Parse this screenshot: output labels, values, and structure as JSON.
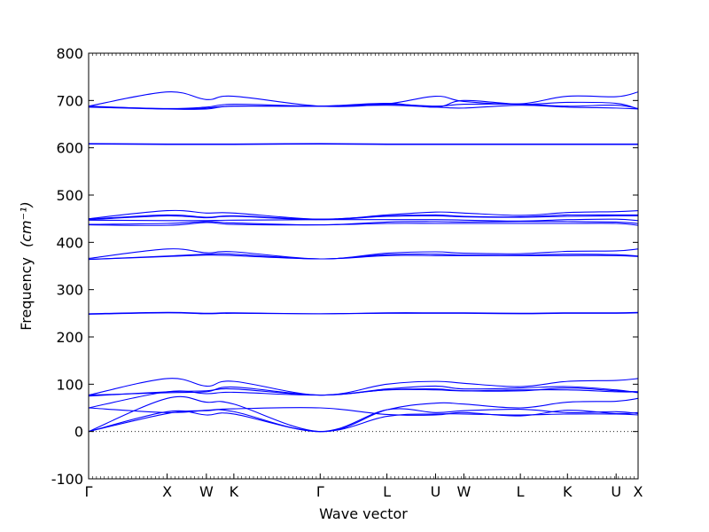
{
  "chart_data": {
    "type": "line",
    "title": "",
    "xlabel": "Wave vector",
    "ylabel": "Frequency",
    "ylabel_unit": "(cm⁻¹)",
    "ylim": [
      -100,
      800
    ],
    "yticks": [
      -100,
      0,
      100,
      200,
      300,
      400,
      500,
      600,
      700,
      800
    ],
    "xticks": [
      {
        "label": "Γ",
        "pos": 0
      },
      {
        "label": "X",
        "pos": 1
      },
      {
        "label": "W",
        "pos": 1.5
      },
      {
        "label": "K",
        "pos": 1.85
      },
      {
        "label": "Γ",
        "pos": 2.95
      },
      {
        "label": "L",
        "pos": 3.8
      },
      {
        "label": "U",
        "pos": 4.42
      },
      {
        "label": "W",
        "pos": 4.78
      },
      {
        "label": "L",
        "pos": 5.5
      },
      {
        "label": "K",
        "pos": 6.1
      },
      {
        "label": "U",
        "pos": 6.72
      },
      {
        "label": "X",
        "pos": 7
      }
    ],
    "xlim": [
      0,
      7
    ],
    "zero_line": true,
    "series_color": "#0000ff",
    "series": [
      {
        "values": [
          0,
          42,
          35,
          37,
          0,
          32,
          37,
          37,
          35,
          37,
          37,
          35
        ]
      },
      {
        "values": [
          0,
          38,
          44,
          42,
          0,
          46,
          40,
          44,
          47,
          40,
          42,
          38
        ]
      },
      {
        "values": [
          0,
          70,
          62,
          58,
          0,
          46,
          60,
          58,
          50,
          62,
          64,
          70
        ]
      },
      {
        "values": [
          50,
          84,
          80,
          83,
          77,
          88,
          90,
          86,
          86,
          92,
          86,
          84
        ]
      },
      {
        "values": [
          50,
          40,
          45,
          48,
          50,
          36,
          35,
          40,
          33,
          45,
          38,
          40
        ]
      },
      {
        "values": [
          75,
          84,
          86,
          90,
          77,
          88,
          88,
          86,
          88,
          88,
          84,
          84
        ]
      },
      {
        "values": [
          77,
          82,
          84,
          94,
          77,
          90,
          96,
          90,
          92,
          95,
          88,
          82
        ]
      },
      {
        "values": [
          77,
          112,
          96,
          106,
          77,
          100,
          106,
          102,
          95,
          106,
          108,
          112
        ]
      },
      {
        "values": [
          248,
          251,
          249,
          250,
          249,
          250,
          250,
          250,
          249,
          250,
          250,
          251
        ]
      },
      {
        "values": [
          249,
          252,
          250,
          251,
          249,
          251,
          251,
          251,
          250,
          251,
          251,
          252
        ]
      },
      {
        "values": [
          364,
          370,
          373,
          372,
          365,
          372,
          372,
          372,
          372,
          372,
          372,
          370
        ]
      },
      {
        "values": [
          364,
          371,
          375,
          375,
          365,
          374,
          375,
          373,
          373,
          375,
          374,
          371
        ]
      },
      {
        "values": [
          366,
          386,
          378,
          380,
          365,
          377,
          380,
          377,
          376,
          381,
          382,
          386
        ]
      },
      {
        "values": [
          437,
          436,
          442,
          438,
          437,
          440,
          440,
          440,
          440,
          440,
          440,
          436
        ]
      },
      {
        "values": [
          438,
          440,
          444,
          441,
          437,
          443,
          444,
          443,
          444,
          444,
          443,
          440
        ]
      },
      {
        "values": [
          447,
          446,
          446,
          447,
          448,
          448,
          448,
          447,
          445,
          448,
          449,
          446
        ]
      },
      {
        "values": [
          448,
          456,
          452,
          455,
          448,
          455,
          456,
          454,
          453,
          455,
          456,
          456
        ]
      },
      {
        "values": [
          449,
          458,
          453,
          456,
          449,
          456,
          458,
          455,
          454,
          458,
          458,
          458
        ]
      },
      {
        "values": [
          450,
          467,
          462,
          462,
          449,
          458,
          464,
          462,
          457,
          463,
          465,
          467
        ]
      },
      {
        "values": [
          608,
          607,
          607,
          607,
          608,
          607,
          607,
          607,
          607,
          607,
          607,
          607
        ]
      },
      {
        "values": [
          609,
          608,
          608,
          608,
          609,
          608,
          608,
          608,
          608,
          608,
          608,
          608
        ]
      },
      {
        "values": [
          686,
          682,
          684,
          688,
          688,
          690,
          686,
          684,
          690,
          686,
          684,
          682
        ]
      },
      {
        "values": [
          687,
          683,
          686,
          692,
          688,
          692,
          688,
          692,
          692,
          688,
          690,
          683
        ]
      },
      {
        "values": [
          688,
          682,
          682,
          688,
          688,
          694,
          686,
          700,
          692,
          696,
          694,
          682
        ]
      },
      {
        "values": [
          688,
          718,
          702,
          709,
          688,
          693,
          709,
          698,
          693,
          709,
          708,
          718
        ]
      }
    ]
  }
}
